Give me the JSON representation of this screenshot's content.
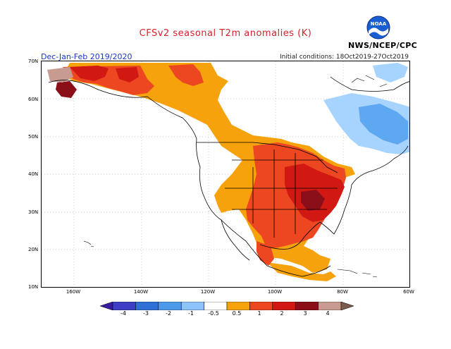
{
  "header": {
    "title": "CFSv2 seasonal T2m anomalies (K)",
    "season": "Dec-Jan-Feb 2019/2020",
    "initial_conditions": "Initial conditions: 18Oct2019-27Oct2019",
    "agency": "NWS/NCEP/CPC",
    "logo_text": "NOAA"
  },
  "map": {
    "lat_labels": [
      "70N",
      "60N",
      "50N",
      "40N",
      "30N",
      "20N",
      "10N"
    ],
    "lon_labels": [
      "160W",
      "140W",
      "120W",
      "100W",
      "80W",
      "60W"
    ],
    "colors": {
      "land_outline": "#000000",
      "anom_0_5_1": "#f5a20d",
      "anom_1_2": "#ec4720",
      "anom_2_3": "#d11812",
      "anom_3_4": "#8a0f19",
      "anom_gt_4": "#c79b90",
      "anom_neg_0_5": "#a6d4ff",
      "anom_neg_1": "#5ea8f2"
    }
  },
  "colorbar": {
    "ticks": [
      "-4",
      "-3",
      "-2",
      "-1",
      "-0.5",
      "0.5",
      "1",
      "2",
      "3",
      "4"
    ],
    "colors": [
      "#3a1a9e",
      "#3e3fc4",
      "#2f6fd6",
      "#4c99ea",
      "#8ec3fb",
      "#ffffff",
      "#f5a20d",
      "#ec4720",
      "#d11812",
      "#8a0f19",
      "#c79b90",
      "#7a5a4a"
    ]
  }
}
